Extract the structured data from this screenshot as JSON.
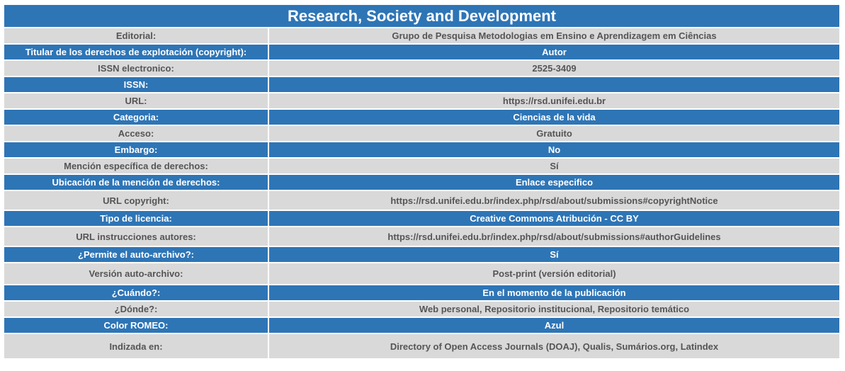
{
  "title": "Research, Society and Development",
  "rows": [
    {
      "label": "Editorial:",
      "value": "Grupo de Pesquisa Metodologias em Ensino e Aprendizagem em Ciências",
      "style": "gray"
    },
    {
      "label": "Titular de los derechos de explotación (copyright):",
      "value": "Autor",
      "style": "blue"
    },
    {
      "label": "ISSN electronico:",
      "value": "2525-3409",
      "style": "gray"
    },
    {
      "label": "ISSN:",
      "value": "",
      "style": "blue"
    },
    {
      "label": "URL:",
      "value": "https://rsd.unifei.edu.br",
      "style": "gray"
    },
    {
      "label": "Categoria:",
      "value": "Ciencias de la vida",
      "style": "blue"
    },
    {
      "label": "Acceso:",
      "value": "Gratuito",
      "style": "gray"
    },
    {
      "label": "Embargo:",
      "value": "No",
      "style": "blue"
    },
    {
      "label": "Mención específica de derechos:",
      "value": "Sí",
      "style": "gray"
    },
    {
      "label": "Ubicación de la mención de derechos:",
      "value": "Enlace especifico",
      "style": "blue"
    },
    {
      "label": "URL copyright:",
      "value": "https://rsd.unifei.edu.br/index.php/rsd/about/submissions#copyrightNotice",
      "style": "gray"
    },
    {
      "label": "Tipo de licencia:",
      "value": "Creative Commons Atribución - CC BY",
      "style": "blue"
    },
    {
      "label": "URL instrucciones autores:",
      "value": "https://rsd.unifei.edu.br/index.php/rsd/about/submissions#authorGuidelines",
      "style": "gray"
    },
    {
      "label": "¿Permite el auto-archivo?:",
      "value": "Sí",
      "style": "blue"
    },
    {
      "label": "Versión auto-archivo:",
      "value": "Post-print (versión editorial)",
      "style": "gray"
    },
    {
      "label": "¿Cuándo?:",
      "value": "En el momento de la publicación",
      "style": "blue"
    },
    {
      "label": "¿Dónde?:",
      "value": "Web personal, Repositorio institucional, Repositorio temático",
      "style": "gray"
    },
    {
      "label": "Color ROMEO:",
      "value": "Azul",
      "style": "blue"
    },
    {
      "label": "Indizada en:",
      "value": "Directory of Open Access Journals (DOAJ), Qualis, Sumários.org, Latindex",
      "style": "gray"
    }
  ]
}
